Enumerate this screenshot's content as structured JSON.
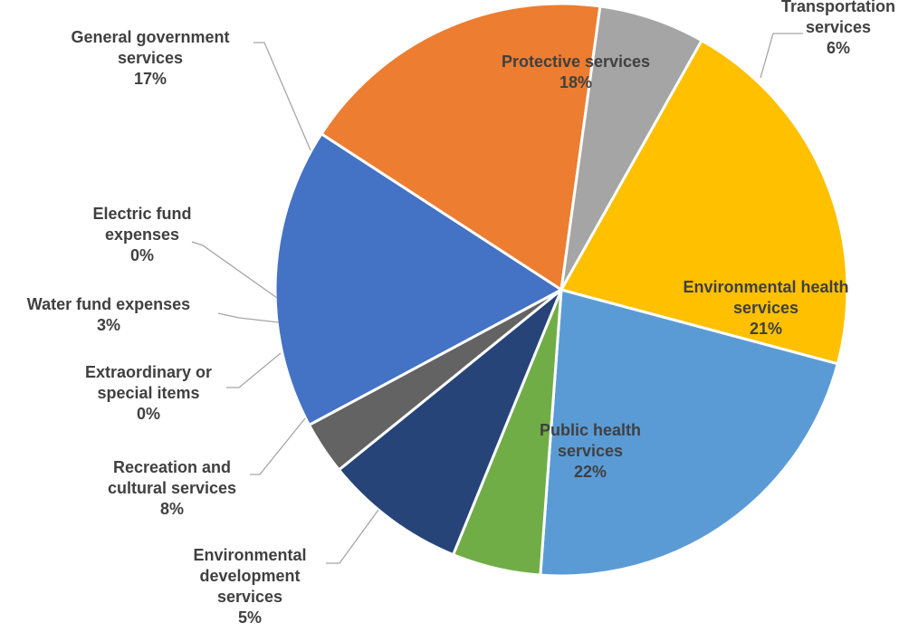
{
  "chart_data": {
    "type": "pie",
    "title": "",
    "slices": [
      {
        "lines": [
          "Protective services"
        ],
        "pct_label": "18%",
        "value": 18,
        "color": "#ED7D31"
      },
      {
        "lines": [
          "Transportation",
          "services"
        ],
        "pct_label": "6%",
        "value": 6,
        "color": "#A5A5A5"
      },
      {
        "lines": [
          "Environmental health",
          "services"
        ],
        "pct_label": "21%",
        "value": 21,
        "color": "#FFC000"
      },
      {
        "lines": [
          "Public health",
          "services"
        ],
        "pct_label": "22%",
        "value": 22,
        "color": "#5B9BD5"
      },
      {
        "lines": [
          "Environmental",
          "development",
          "services"
        ],
        "pct_label": "5%",
        "value": 5,
        "color": "#70AD47"
      },
      {
        "lines": [
          "Recreation and",
          "cultural services"
        ],
        "pct_label": "8%",
        "value": 8,
        "color": "#264478"
      },
      {
        "lines": [
          "Extraordinary or",
          "special items"
        ],
        "pct_label": "0%",
        "value": 0,
        "color": "#9E480E"
      },
      {
        "lines": [
          "Water fund expenses"
        ],
        "pct_label": "3%",
        "value": 3,
        "color": "#636363"
      },
      {
        "lines": [
          "Electric fund",
          "expenses"
        ],
        "pct_label": "0%",
        "value": 0,
        "color": "#997300"
      },
      {
        "lines": [
          "General government",
          "services"
        ],
        "pct_label": "17%",
        "value": 17,
        "color": "#4472C4"
      }
    ]
  }
}
